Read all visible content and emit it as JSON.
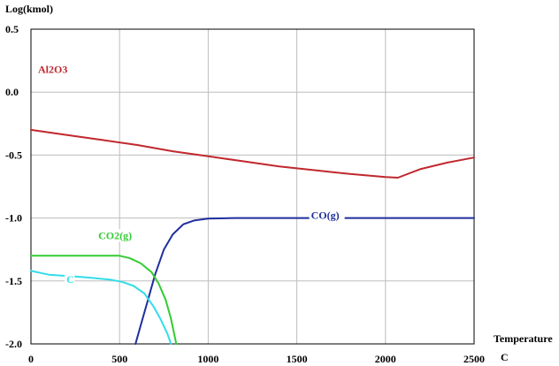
{
  "chart_data": {
    "type": "line",
    "ylabel": "Log(kmol)",
    "xlabel_line1": "Temperature",
    "xlabel_line2": "C",
    "xlim": [
      0,
      2500
    ],
    "ylim": [
      -2.0,
      0.5
    ],
    "xticks": [
      0,
      500,
      1000,
      1500,
      2000,
      2500
    ],
    "xtick_labels": [
      "0",
      "500",
      "1000",
      "1500",
      "2000",
      "2500"
    ],
    "yticks": [
      0.5,
      0.0,
      -0.5,
      -1.0,
      -1.5,
      -2.0
    ],
    "ytick_labels": [
      "0.5",
      "0.0",
      "-0.5",
      "-1.0",
      "-1.5",
      "-2.0"
    ],
    "grid": true,
    "legend": "inline labels",
    "series": [
      {
        "name": "Al2O3",
        "color": "#c0282d",
        "points": [
          [
            0,
            -0.3
          ],
          [
            200,
            -0.34
          ],
          [
            400,
            -0.38
          ],
          [
            600,
            -0.42
          ],
          [
            800,
            -0.47
          ],
          [
            1000,
            -0.51
          ],
          [
            1200,
            -0.55
          ],
          [
            1400,
            -0.59
          ],
          [
            1600,
            -0.62
          ],
          [
            1800,
            -0.65
          ],
          [
            2000,
            -0.675
          ],
          [
            2070,
            -0.68
          ],
          [
            2200,
            -0.61
          ],
          [
            2350,
            -0.56
          ],
          [
            2500,
            -0.52
          ]
        ]
      },
      {
        "name": "CO(g)",
        "color": "#1f2f9c",
        "points": [
          [
            590,
            -2.0
          ],
          [
            620,
            -1.85
          ],
          [
            660,
            -1.65
          ],
          [
            700,
            -1.45
          ],
          [
            750,
            -1.25
          ],
          [
            800,
            -1.13
          ],
          [
            860,
            -1.05
          ],
          [
            920,
            -1.02
          ],
          [
            1000,
            -1.005
          ],
          [
            1150,
            -1.0
          ],
          [
            1500,
            -1.0
          ],
          [
            2000,
            -1.0
          ],
          [
            2500,
            -1.0
          ]
        ]
      },
      {
        "name": "CO2(g)",
        "color": "#33cc33",
        "points": [
          [
            0,
            -1.3
          ],
          [
            200,
            -1.3
          ],
          [
            400,
            -1.3
          ],
          [
            500,
            -1.3
          ],
          [
            560,
            -1.32
          ],
          [
            620,
            -1.36
          ],
          [
            680,
            -1.43
          ],
          [
            720,
            -1.52
          ],
          [
            760,
            -1.65
          ],
          [
            790,
            -1.8
          ],
          [
            820,
            -2.0
          ]
        ]
      },
      {
        "name": "C",
        "color": "#33dde8",
        "points": [
          [
            0,
            -1.42
          ],
          [
            100,
            -1.45
          ],
          [
            300,
            -1.47
          ],
          [
            450,
            -1.49
          ],
          [
            520,
            -1.51
          ],
          [
            580,
            -1.54
          ],
          [
            640,
            -1.6
          ],
          [
            690,
            -1.7
          ],
          [
            730,
            -1.8
          ],
          [
            770,
            -1.92
          ],
          [
            790,
            -2.0
          ]
        ]
      }
    ],
    "labels": [
      {
        "text": "Al2O3",
        "x": 40,
        "y": 0.16,
        "color": "#c0282d"
      },
      {
        "text": "CO(g)",
        "x": 1580,
        "y": -1.0,
        "color": "#1f2f9c"
      },
      {
        "text": "CO2(g)",
        "x": 380,
        "y": -1.16,
        "color": "#33cc33"
      },
      {
        "text": "C",
        "x": 200,
        "y": -1.51,
        "color": "#33dde8"
      }
    ]
  }
}
